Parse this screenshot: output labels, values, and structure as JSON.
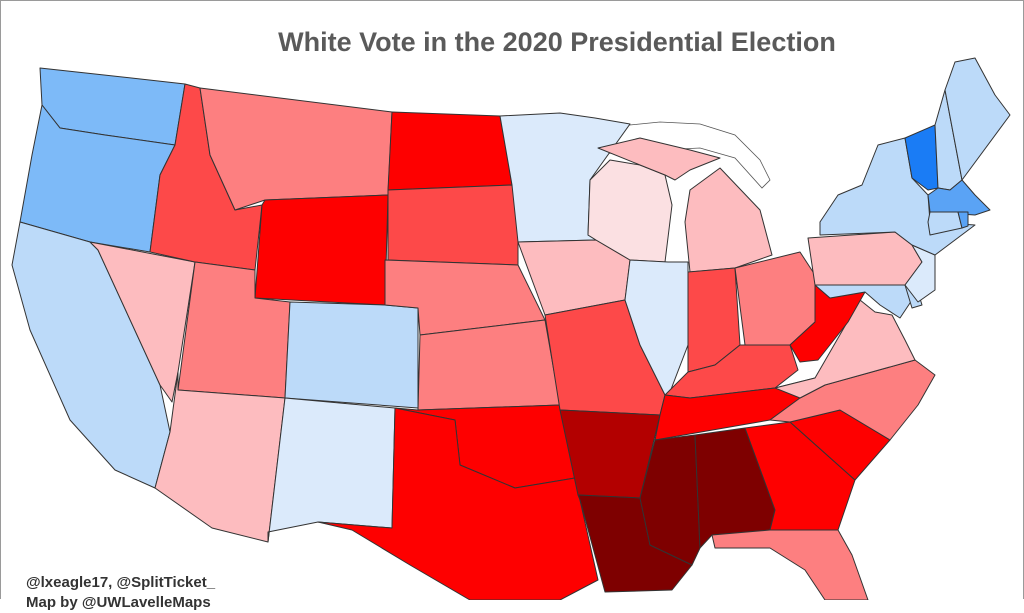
{
  "title": "White Vote in the 2020 Presidential Election",
  "credits": [
    "@lxeagle17, @SplitTicket_",
    "Map by @UWLavelleMaps"
  ],
  "palette": {
    "safe_d": "#1a7cf5",
    "likely_d": "#5aa3f5",
    "lean_d": "#7dbaf8",
    "tilt_d": "#bcdaf9",
    "weak_d": "#dbeafb",
    "weak_r": "#fbe0e2",
    "tilt_r": "#fdbcbf",
    "lean_r": "#fd7f80",
    "likely_r": "#fd4949",
    "safe_r": "#fe0000",
    "strong_r": "#b30000",
    "extreme_r": "#7e0000"
  },
  "states": [
    {
      "id": "WA",
      "shade": "lean_d"
    },
    {
      "id": "OR",
      "shade": "lean_d"
    },
    {
      "id": "CA",
      "shade": "tilt_d"
    },
    {
      "id": "NV",
      "shade": "tilt_r"
    },
    {
      "id": "ID",
      "shade": "likely_r"
    },
    {
      "id": "MT",
      "shade": "lean_r"
    },
    {
      "id": "WY",
      "shade": "safe_r"
    },
    {
      "id": "UT",
      "shade": "lean_r"
    },
    {
      "id": "AZ",
      "shade": "tilt_r"
    },
    {
      "id": "CO",
      "shade": "tilt_d"
    },
    {
      "id": "NM",
      "shade": "weak_d"
    },
    {
      "id": "ND",
      "shade": "safe_r"
    },
    {
      "id": "SD",
      "shade": "likely_r"
    },
    {
      "id": "NE",
      "shade": "lean_r"
    },
    {
      "id": "KS",
      "shade": "lean_r"
    },
    {
      "id": "OK",
      "shade": "safe_r"
    },
    {
      "id": "TX",
      "shade": "safe_r"
    },
    {
      "id": "MN",
      "shade": "weak_d"
    },
    {
      "id": "IA",
      "shade": "tilt_r"
    },
    {
      "id": "MO",
      "shade": "likely_r"
    },
    {
      "id": "AR",
      "shade": "strong_r"
    },
    {
      "id": "LA",
      "shade": "extreme_r"
    },
    {
      "id": "WI",
      "shade": "weak_r"
    },
    {
      "id": "IL",
      "shade": "weak_d"
    },
    {
      "id": "MI",
      "shade": "tilt_r"
    },
    {
      "id": "IN",
      "shade": "likely_r"
    },
    {
      "id": "OH",
      "shade": "lean_r"
    },
    {
      "id": "KY",
      "shade": "likely_r"
    },
    {
      "id": "TN",
      "shade": "safe_r"
    },
    {
      "id": "MS",
      "shade": "extreme_r"
    },
    {
      "id": "AL",
      "shade": "extreme_r"
    },
    {
      "id": "GA",
      "shade": "safe_r"
    },
    {
      "id": "FL",
      "shade": "lean_r"
    },
    {
      "id": "SC",
      "shade": "safe_r"
    },
    {
      "id": "NC",
      "shade": "lean_r"
    },
    {
      "id": "VA",
      "shade": "tilt_r"
    },
    {
      "id": "WV",
      "shade": "safe_r"
    },
    {
      "id": "PA",
      "shade": "tilt_r"
    },
    {
      "id": "NY",
      "shade": "tilt_d"
    },
    {
      "id": "VT",
      "shade": "safe_d"
    },
    {
      "id": "NH",
      "shade": "tilt_d"
    },
    {
      "id": "ME",
      "shade": "tilt_d"
    },
    {
      "id": "MA",
      "shade": "likely_d"
    },
    {
      "id": "RI",
      "shade": "likely_d"
    },
    {
      "id": "CT",
      "shade": "tilt_d"
    },
    {
      "id": "NJ",
      "shade": "weak_d"
    },
    {
      "id": "DE",
      "shade": "tilt_d"
    },
    {
      "id": "MD",
      "shade": "tilt_d"
    }
  ]
}
